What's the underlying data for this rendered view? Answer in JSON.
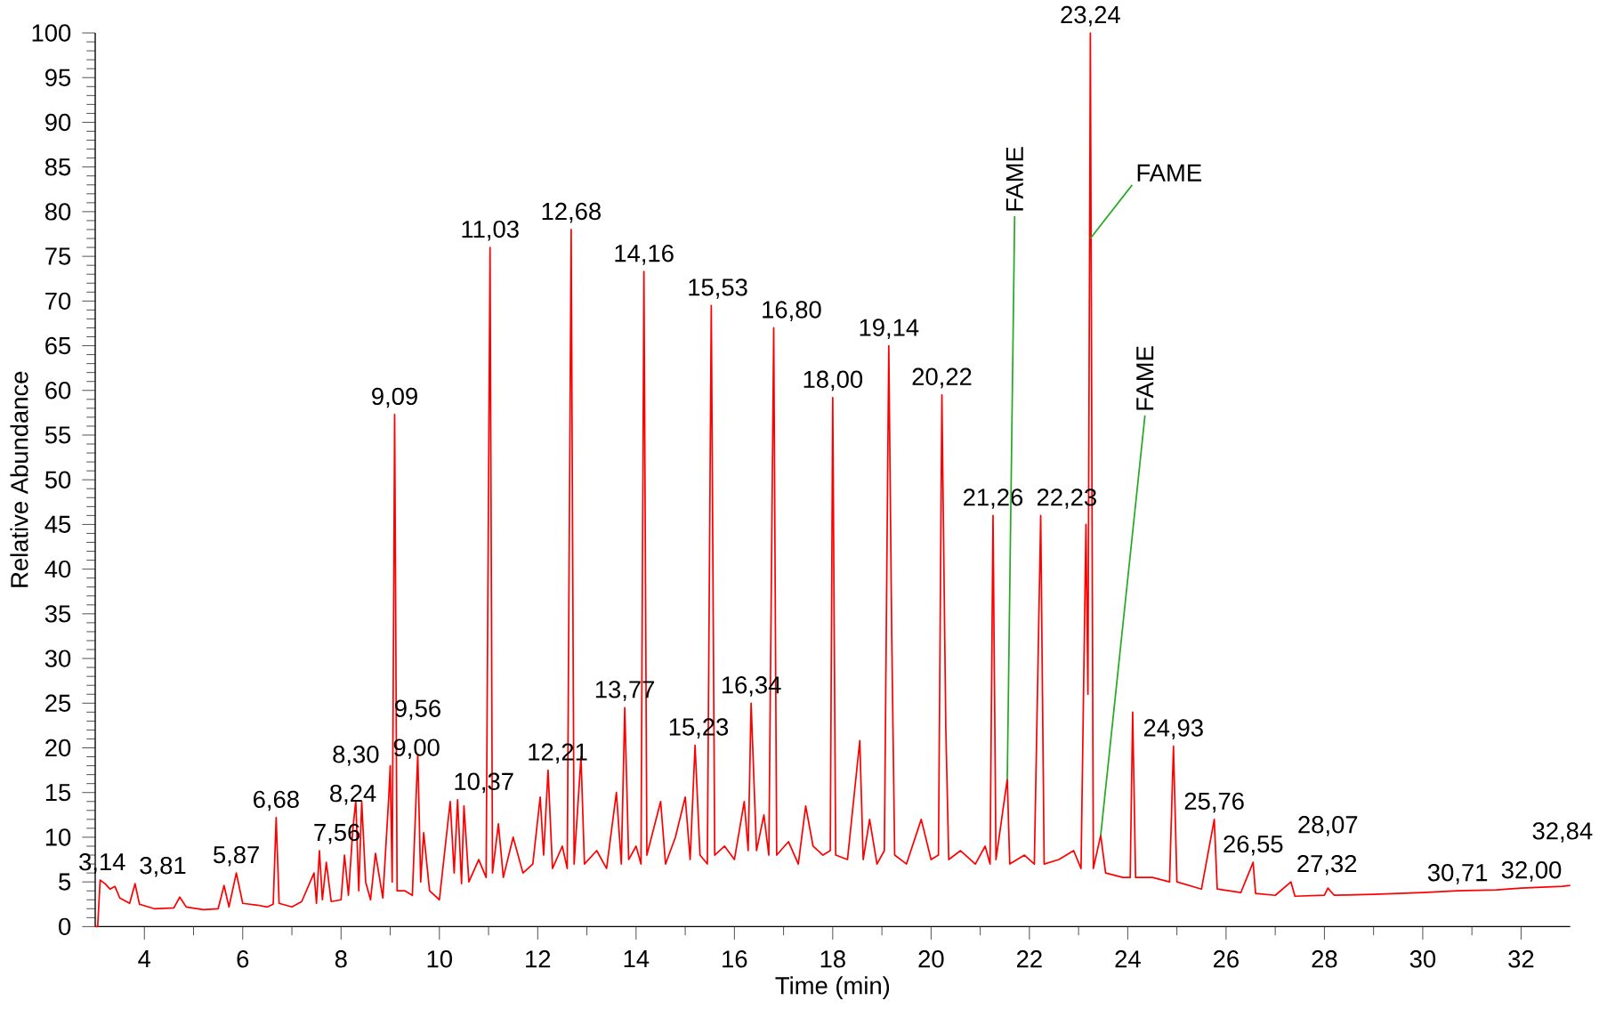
{
  "chart_data": {
    "type": "line",
    "xlabel": "Time (min)",
    "ylabel": "Relative Abundance",
    "xlim": [
      3,
      33
    ],
    "ylim": [
      0,
      100
    ],
    "xticks": [
      4,
      6,
      8,
      10,
      12,
      14,
      16,
      18,
      20,
      22,
      24,
      26,
      28,
      30,
      32
    ],
    "yticks": [
      0,
      5,
      10,
      15,
      20,
      25,
      30,
      35,
      40,
      45,
      50,
      55,
      60,
      65,
      70,
      75,
      80,
      85,
      90,
      95,
      100
    ],
    "series": [
      {
        "color": "#ff0000",
        "x": [
          3.0,
          3.05,
          3.1,
          3.2,
          3.3,
          3.4,
          3.5,
          3.7,
          3.81,
          3.9,
          4.2,
          4.6,
          4.72,
          4.85,
          5.2,
          5.5,
          5.62,
          5.72,
          5.87,
          6.0,
          6.3,
          6.5,
          6.62,
          6.68,
          6.74,
          7.0,
          7.2,
          7.45,
          7.5,
          7.56,
          7.62,
          7.7,
          7.8,
          8.0,
          8.07,
          8.15,
          8.24,
          8.3,
          8.36,
          8.42,
          8.5,
          8.6,
          8.7,
          8.85,
          8.97,
          9.0,
          9.04,
          9.09,
          9.14,
          9.3,
          9.45,
          9.56,
          9.62,
          9.68,
          9.8,
          10.0,
          10.22,
          10.3,
          10.37,
          10.45,
          10.5,
          10.6,
          10.8,
          10.95,
          11.03,
          11.08,
          11.2,
          11.3,
          11.5,
          11.7,
          11.9,
          12.05,
          12.12,
          12.21,
          12.3,
          12.5,
          12.6,
          12.68,
          12.74,
          12.88,
          12.95,
          13.2,
          13.4,
          13.6,
          13.7,
          13.77,
          13.85,
          14.0,
          14.1,
          14.16,
          14.22,
          14.5,
          14.6,
          14.8,
          15.0,
          15.1,
          15.2,
          15.3,
          15.45,
          15.53,
          15.6,
          15.8,
          16.0,
          16.2,
          16.28,
          16.34,
          16.45,
          16.6,
          16.7,
          16.8,
          16.86,
          17.1,
          17.3,
          17.45,
          17.6,
          17.8,
          17.95,
          18.0,
          18.06,
          18.3,
          18.55,
          18.62,
          18.75,
          18.9,
          19.05,
          19.14,
          19.2,
          19.26,
          19.5,
          19.8,
          20.0,
          20.15,
          20.22,
          20.3,
          20.36,
          20.6,
          20.9,
          21.1,
          21.2,
          21.26,
          21.32,
          21.55,
          21.6,
          21.9,
          22.1,
          22.23,
          22.3,
          22.6,
          22.9,
          23.05,
          23.15,
          23.19,
          23.24,
          23.3,
          23.45,
          23.55,
          23.9,
          24.05,
          24.1,
          24.16,
          24.5,
          24.85,
          24.93,
          25.0,
          25.5,
          25.76,
          25.82,
          26.3,
          26.55,
          26.6,
          27.0,
          27.32,
          27.4,
          28.0,
          28.07,
          28.2,
          29.0,
          30.0,
          30.71,
          31.5,
          32.0,
          32.84,
          33.0
        ],
        "values": [
          0,
          0,
          5.2,
          4.8,
          4.2,
          4.5,
          3.2,
          2.6,
          4.8,
          2.5,
          2.0,
          2.1,
          3.3,
          2.2,
          1.9,
          2.0,
          4.6,
          2.2,
          6.0,
          2.6,
          2.4,
          2.2,
          2.5,
          12.2,
          2.6,
          2.2,
          2.8,
          6.0,
          2.6,
          8.5,
          3.0,
          7.2,
          2.8,
          3.0,
          8.0,
          3.5,
          10.9,
          14.1,
          4.0,
          14.0,
          5.0,
          3.0,
          8.2,
          3.2,
          14.5,
          18.0,
          5.0,
          57.3,
          4.0,
          4.0,
          3.5,
          19.3,
          5.0,
          10.5,
          4.0,
          3.0,
          14.0,
          6.0,
          14.2,
          4.8,
          13.5,
          5.0,
          7.5,
          5.5,
          76.0,
          6.0,
          11.5,
          5.5,
          10.0,
          6.0,
          7.0,
          14.5,
          8.0,
          17.5,
          6.5,
          9.0,
          6.5,
          78.0,
          7.0,
          19.0,
          7.0,
          8.5,
          6.5,
          15.0,
          7.0,
          24.5,
          7.5,
          9.0,
          7.0,
          73.3,
          8.0,
          14.0,
          7.0,
          10.0,
          14.5,
          7.5,
          20.3,
          8.0,
          7.0,
          69.5,
          8.0,
          9.0,
          7.5,
          14.0,
          8.5,
          25.0,
          8.5,
          12.5,
          8.0,
          67.0,
          8.0,
          9.5,
          7.0,
          13.5,
          9.0,
          8.0,
          8.5,
          59.2,
          8.0,
          7.5,
          20.8,
          7.5,
          12.0,
          7.0,
          8.5,
          65.0,
          32.5,
          8.0,
          7.0,
          12.0,
          7.5,
          8.0,
          59.5,
          22.2,
          7.5,
          8.5,
          7.0,
          9.0,
          7.0,
          46.0,
          7.5,
          16.5,
          7.0,
          8.0,
          7.0,
          46.0,
          7.0,
          7.5,
          8.5,
          6.5,
          45.0,
          26.0,
          100.0,
          6.5,
          10.2,
          6.0,
          5.5,
          5.5,
          24.0,
          5.5,
          5.5,
          5.0,
          20.2,
          5.0,
          4.2,
          12.0,
          4.2,
          3.8,
          7.2,
          3.7,
          3.5,
          5.0,
          3.4,
          3.5,
          4.3,
          3.5,
          3.6,
          3.8,
          4.0,
          4.1,
          4.3,
          4.5,
          4.6
        ]
      }
    ],
    "annotations": [
      {
        "text": "3,14",
        "x": 3.14,
        "y": 5.2
      },
      {
        "text": "3,81",
        "x": 3.81,
        "y": 4.8
      },
      {
        "text": "5,87",
        "x": 5.87,
        "y": 6.0
      },
      {
        "text": "6,68",
        "x": 6.68,
        "y": 12.2
      },
      {
        "text": "7,56",
        "x": 7.56,
        "y": 8.5
      },
      {
        "text": "8,24",
        "x": 8.24,
        "y": 10.9
      },
      {
        "text": "8,30",
        "x": 8.3,
        "y": 14.1
      },
      {
        "text": "9,00",
        "x": 9.0,
        "y": 18.0
      },
      {
        "text": "9,09",
        "x": 9.09,
        "y": 57.3
      },
      {
        "text": "9,56",
        "x": 9.56,
        "y": 19.3
      },
      {
        "text": "10,37",
        "x": 10.37,
        "y": 14.2
      },
      {
        "text": "11,03",
        "x": 11.03,
        "y": 76.0
      },
      {
        "text": "12,21",
        "x": 12.21,
        "y": 17.5
      },
      {
        "text": "12,68",
        "x": 12.68,
        "y": 78.0
      },
      {
        "text": "13,77",
        "x": 13.77,
        "y": 24.5
      },
      {
        "text": "14,16",
        "x": 14.16,
        "y": 73.3
      },
      {
        "text": "15,23",
        "x": 15.2,
        "y": 20.3
      },
      {
        "text": "15,53",
        "x": 15.53,
        "y": 69.5
      },
      {
        "text": "16,34",
        "x": 16.34,
        "y": 25.0
      },
      {
        "text": "16,80",
        "x": 16.8,
        "y": 67.0
      },
      {
        "text": "18,00",
        "x": 18.0,
        "y": 59.2
      },
      {
        "text": "19,14",
        "x": 19.14,
        "y": 65.0
      },
      {
        "text": "20,22",
        "x": 20.22,
        "y": 59.5
      },
      {
        "text": "21,26",
        "x": 21.26,
        "y": 46.0
      },
      {
        "text": "22,23",
        "x": 22.23,
        "y": 46.0
      },
      {
        "text": "23,24",
        "x": 23.24,
        "y": 100.0
      },
      {
        "text": "24,93",
        "x": 24.93,
        "y": 20.2
      },
      {
        "text": "25,76",
        "x": 25.76,
        "y": 12.0
      },
      {
        "text": "26,55",
        "x": 26.55,
        "y": 7.2
      },
      {
        "text": "27,32",
        "x": 27.32,
        "y": 5.0
      },
      {
        "text": "28,07",
        "x": 28.07,
        "y": 4.3
      },
      {
        "text": "30,71",
        "x": 30.71,
        "y": 4.0
      },
      {
        "text": "32,00",
        "x": 32.0,
        "y": 4.3
      },
      {
        "text": "32,84",
        "x": 32.84,
        "y": 4.5
      },
      {
        "text": "FAME",
        "x": 21.55,
        "y": 16.5
      },
      {
        "text": "FAME",
        "x": 23.24,
        "y": 77.0
      },
      {
        "text": "FAME",
        "x": 23.45,
        "y": 10.2
      }
    ]
  }
}
